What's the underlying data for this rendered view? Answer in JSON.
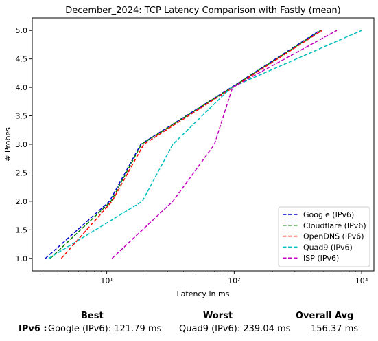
{
  "chart_data": {
    "type": "line",
    "title": "December_2024: TCP Latency Comparison with Fastly (mean)",
    "xlabel": "Latency in ms",
    "ylabel": "# Probes",
    "xscale": "log",
    "xlim": [
      2.6,
      1250
    ],
    "ylim": [
      0.78,
      5.22
    ],
    "x_ticks": [
      10,
      100,
      1000
    ],
    "x_tick_labels": [
      "10¹",
      "10²",
      "10³"
    ],
    "y_ticks": [
      1.0,
      1.5,
      2.0,
      2.5,
      3.0,
      3.5,
      4.0,
      4.5,
      5.0
    ],
    "y_tick_labels": [
      "1.0",
      "1.5",
      "2.0",
      "2.5",
      "3.0",
      "3.5",
      "4.0",
      "4.5",
      "5.0"
    ],
    "grid": false,
    "legend_position": "lower-right",
    "series": [
      {
        "name": "Google (IPv6)",
        "color": "#0000cc",
        "x": [
          3.3,
          10.5,
          18.5,
          95,
          470
        ],
        "y": [
          1,
          2,
          3,
          4,
          5
        ]
      },
      {
        "name": "Cloudflare (IPv6)",
        "color": "#008000",
        "x": [
          3.6,
          10.8,
          18.7,
          96,
          480
        ],
        "y": [
          1,
          2,
          3,
          4,
          5
        ]
      },
      {
        "name": "OpenDNS (IPv6)",
        "color": "#ff0000",
        "x": [
          4.4,
          11.0,
          19.5,
          98,
          490
        ],
        "y": [
          1,
          2,
          3,
          4,
          5
        ]
      },
      {
        "name": "Quad9 (IPv6)",
        "color": "#00bfbf",
        "x": [
          3.5,
          19.0,
          33,
          95,
          1000
        ],
        "y": [
          1,
          2,
          3,
          4,
          5
        ]
      },
      {
        "name": "ISP (IPv6)",
        "color": "#bf00bf",
        "x": [
          11,
          33,
          70,
          97,
          640
        ],
        "y": [
          1,
          2,
          3,
          4,
          5
        ]
      }
    ]
  },
  "summary": {
    "best_header": "Best",
    "worst_header": "Worst",
    "avg_header": "Overall Avg",
    "row_label": "IPv6 :",
    "best_value": "Google (IPv6): 121.79 ms",
    "worst_value": "Quad9 (IPv6): 239.04 ms",
    "avg_value": "156.37 ms"
  }
}
